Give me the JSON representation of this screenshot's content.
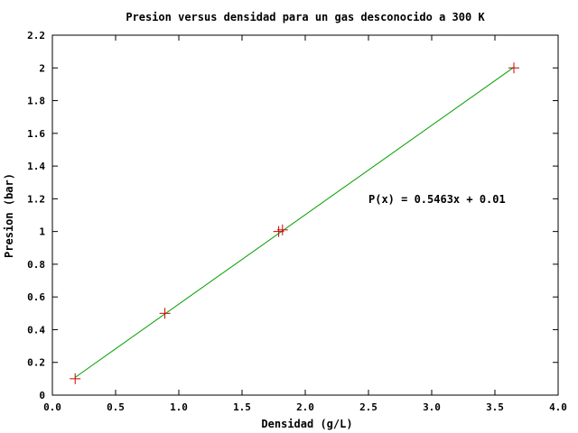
{
  "chart_data": {
    "type": "scatter",
    "title": "Presion versus densidad para un gas desconocido a 300 K",
    "xlabel": "Densidad (g/L)",
    "ylabel": "Presion (bar)",
    "xlim": [
      0.0,
      4.0
    ],
    "ylim": [
      0,
      2.2
    ],
    "x_ticks": [
      "0.0",
      "0.5",
      "1.0",
      "1.5",
      "2.0",
      "2.5",
      "3.0",
      "3.5",
      "4.0"
    ],
    "y_ticks": [
      "0",
      "0.2",
      "0.4",
      "0.6",
      "0.8",
      "1",
      "1.2",
      "1.4",
      "1.6",
      "1.8",
      "2",
      "2.2"
    ],
    "grid": false,
    "series": [
      {
        "marker": "plus",
        "color": "#cc0000",
        "x": [
          0.18,
          0.89,
          1.79,
          1.82,
          3.65
        ],
        "y": [
          0.1,
          0.5,
          1.0,
          1.01,
          2.0
        ]
      }
    ],
    "fit": {
      "color": "#00a000",
      "slope": 0.5463,
      "intercept": 0.01,
      "x_range": [
        0.18,
        3.65
      ],
      "label": "P(x) = 0.5463x + 0.01"
    }
  }
}
